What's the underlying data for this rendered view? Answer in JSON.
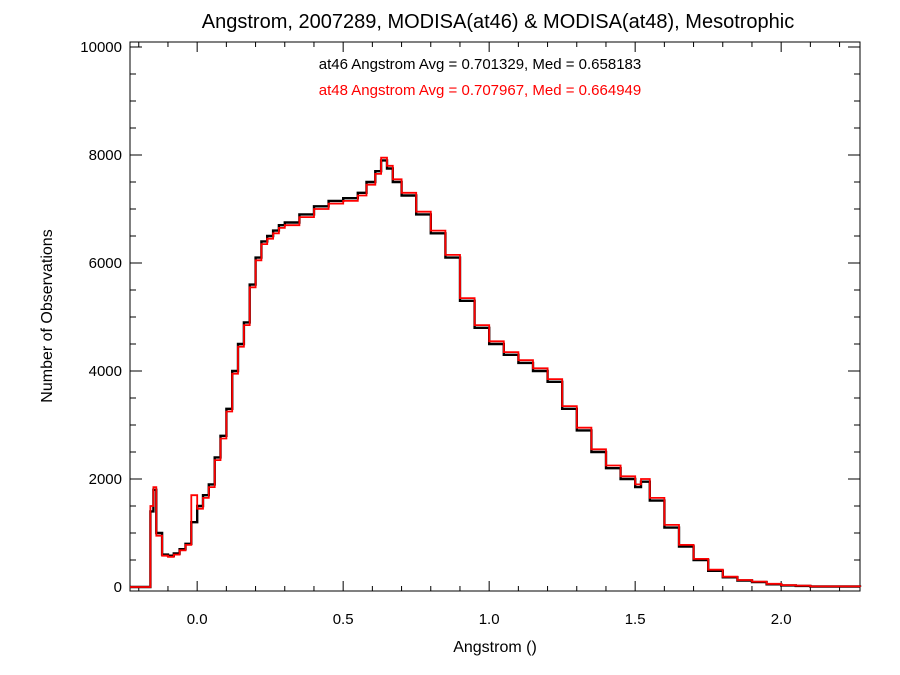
{
  "chart_data": {
    "type": "line",
    "title": "Angstrom, 2007289, MODISA(at46) & MODISA(at48), Mesotrophic",
    "xlabel": "Angstrom ()",
    "ylabel": "Number of Observations",
    "xlim": [
      -0.23,
      2.27
    ],
    "ylim": [
      0,
      10000
    ],
    "x_ticks": [
      0.0,
      0.5,
      1.0,
      1.5,
      2.0
    ],
    "x_tick_labels": [
      "0.0",
      "0.5",
      "1.0",
      "1.5",
      "2.0"
    ],
    "y_ticks": [
      0,
      2000,
      4000,
      6000,
      8000,
      10000
    ],
    "y_tick_labels": [
      "0",
      "2000",
      "4000",
      "6000",
      "8000",
      "10000"
    ],
    "grid": false,
    "annotations": [
      {
        "text": "at46 Angstrom Avg = 0.701329, Med = 0.658183",
        "color": "#000000"
      },
      {
        "text": "at48 Angstrom Avg = 0.707967, Med = 0.664949",
        "color": "#ff0000"
      }
    ],
    "series": [
      {
        "color": "#000000",
        "x": [
          -0.23,
          -0.16,
          -0.15,
          -0.14,
          -0.12,
          -0.1,
          -0.08,
          -0.06,
          -0.04,
          -0.02,
          0.0,
          0.02,
          0.04,
          0.06,
          0.08,
          0.1,
          0.12,
          0.14,
          0.16,
          0.18,
          0.2,
          0.22,
          0.24,
          0.26,
          0.28,
          0.3,
          0.35,
          0.4,
          0.45,
          0.5,
          0.55,
          0.58,
          0.61,
          0.63,
          0.65,
          0.67,
          0.7,
          0.75,
          0.8,
          0.85,
          0.9,
          0.95,
          1.0,
          1.05,
          1.1,
          1.15,
          1.2,
          1.25,
          1.3,
          1.35,
          1.4,
          1.45,
          1.5,
          1.52,
          1.55,
          1.6,
          1.65,
          1.7,
          1.75,
          1.8,
          1.85,
          1.9,
          1.95,
          2.0,
          2.05,
          2.1,
          2.27
        ],
        "values": [
          0,
          1400,
          1800,
          1000,
          600,
          580,
          620,
          700,
          800,
          1200,
          1500,
          1700,
          1900,
          2400,
          2800,
          3300,
          4000,
          4500,
          4900,
          5600,
          6100,
          6400,
          6500,
          6600,
          6700,
          6750,
          6900,
          7050,
          7150,
          7200,
          7300,
          7500,
          7700,
          7900,
          7750,
          7500,
          7250,
          6900,
          6550,
          6100,
          5300,
          4800,
          4500,
          4300,
          4150,
          4000,
          3800,
          3300,
          2900,
          2500,
          2200,
          2000,
          1850,
          1950,
          1600,
          1100,
          750,
          500,
          300,
          180,
          120,
          90,
          50,
          30,
          20,
          10,
          0
        ]
      },
      {
        "color": "#ff0000",
        "x": [
          -0.23,
          -0.16,
          -0.15,
          -0.14,
          -0.12,
          -0.1,
          -0.08,
          -0.06,
          -0.04,
          -0.02,
          0.0,
          0.02,
          0.04,
          0.06,
          0.08,
          0.1,
          0.12,
          0.14,
          0.16,
          0.18,
          0.2,
          0.22,
          0.24,
          0.26,
          0.28,
          0.3,
          0.35,
          0.4,
          0.45,
          0.5,
          0.55,
          0.58,
          0.61,
          0.63,
          0.65,
          0.67,
          0.7,
          0.75,
          0.8,
          0.85,
          0.9,
          0.95,
          1.0,
          1.05,
          1.1,
          1.15,
          1.2,
          1.25,
          1.3,
          1.35,
          1.4,
          1.45,
          1.5,
          1.52,
          1.55,
          1.6,
          1.65,
          1.7,
          1.75,
          1.8,
          1.85,
          1.9,
          1.95,
          2.0,
          2.05,
          2.1,
          2.27
        ],
        "values": [
          0,
          1500,
          1850,
          950,
          580,
          560,
          600,
          680,
          780,
          1700,
          1450,
          1650,
          1850,
          2350,
          2750,
          3250,
          3950,
          4450,
          4850,
          5550,
          6050,
          6350,
          6450,
          6550,
          6650,
          6700,
          6850,
          7000,
          7100,
          7150,
          7250,
          7450,
          7650,
          7950,
          7800,
          7550,
          7300,
          6950,
          6600,
          6150,
          5350,
          4850,
          4550,
          4350,
          4200,
          4050,
          3850,
          3350,
          2950,
          2550,
          2250,
          2050,
          1900,
          2000,
          1650,
          1150,
          780,
          520,
          320,
          190,
          130,
          100,
          60,
          35,
          25,
          12,
          0
        ]
      }
    ]
  }
}
